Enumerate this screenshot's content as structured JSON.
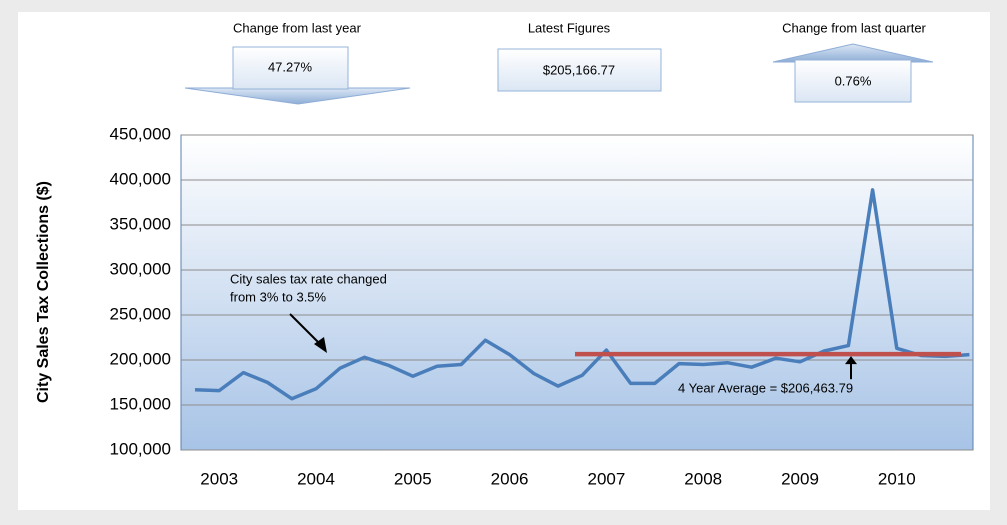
{
  "kpis": [
    {
      "title": "Change from last year",
      "value": "47.27%"
    },
    {
      "title": "Latest Figures",
      "value": "$205,166.77"
    },
    {
      "title": "Change from last quarter",
      "value": "0.76%"
    }
  ],
  "chart_data": {
    "type": "line",
    "y_label": "City Sales Tax Collections ($)",
    "categories": [
      null,
      "2003",
      null,
      null,
      null,
      "2004",
      null,
      null,
      null,
      "2005",
      null,
      null,
      null,
      "2006",
      null,
      null,
      null,
      "2007",
      null,
      null,
      null,
      "2008",
      null,
      null,
      null,
      "2009",
      null,
      null,
      null,
      "2010",
      null,
      null,
      null
    ],
    "series": [
      {
        "name": "City Sales Tax Collections",
        "color": "#4a7ebb",
        "values": [
          167000,
          166000,
          186000,
          175000,
          157000,
          168000,
          191000,
          203000,
          194000,
          182000,
          193000,
          195000,
          222000,
          206000,
          185000,
          171000,
          183000,
          211000,
          174000,
          174000,
          196000,
          195000,
          197000,
          192000,
          202000,
          198000,
          210000,
          216000,
          389000,
          213000,
          205000,
          204000,
          206000
        ]
      }
    ],
    "reference_line": {
      "label": "4 Year Average = $206,463.79",
      "value": 206463.79,
      "color": "#c0504d"
    },
    "annotation": [
      "City sales tax rate changed",
      "from 3% to 3.5%"
    ],
    "ylim": [
      100000,
      450000
    ],
    "yticks": [
      {
        "value": 100000,
        "label": "100,000"
      },
      {
        "value": 150000,
        "label": "150,000"
      },
      {
        "value": 200000,
        "label": "200,000"
      },
      {
        "value": 250000,
        "label": "250,000"
      },
      {
        "value": 300000,
        "label": "300,000"
      },
      {
        "value": 350000,
        "label": "350,000"
      },
      {
        "value": 400000,
        "label": "400,000"
      },
      {
        "value": 450000,
        "label": "450,000"
      }
    ],
    "grid": true
  }
}
